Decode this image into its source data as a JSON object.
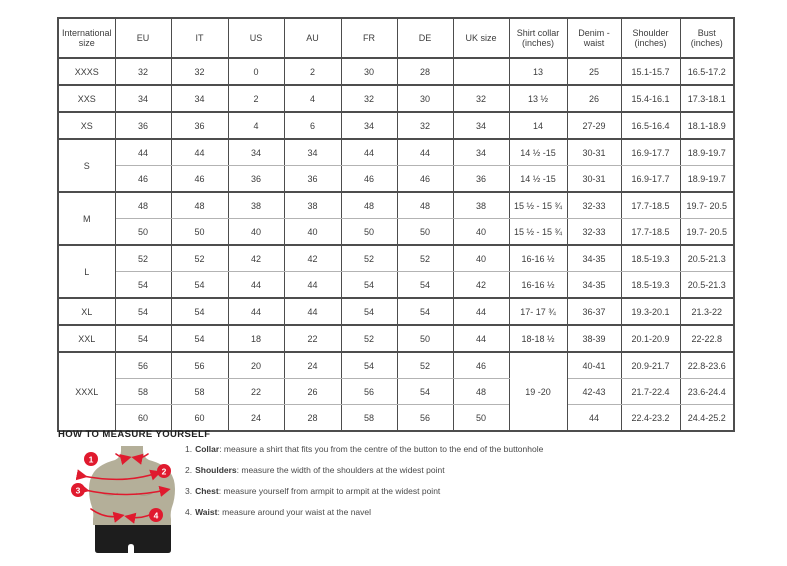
{
  "size_chart": {
    "headers": [
      "International size",
      "EU",
      "IT",
      "US",
      "AU",
      "FR",
      "DE",
      "UK size",
      "Shirt collar (inches)",
      "Denim - waist",
      "Shoulder (inches)",
      "Bust (inches)"
    ],
    "rows": [
      {
        "group_start": true,
        "cells": [
          "XXXS",
          "32",
          "32",
          "0",
          "2",
          "30",
          "28",
          "",
          "13",
          "25",
          "15.1-15.7",
          "16.5-17.2"
        ]
      },
      {
        "group_start": true,
        "cells": [
          "XXS",
          "34",
          "34",
          "2",
          "4",
          "32",
          "30",
          "32",
          "13 ½",
          "26",
          "15.4-16.1",
          "17.3-18.1"
        ]
      },
      {
        "group_start": true,
        "cells": [
          "XS",
          "36",
          "36",
          "4",
          "6",
          "34",
          "32",
          "34",
          "14",
          "27-29",
          "16.5-16.4",
          "18.1-18.9"
        ]
      },
      {
        "group_start": true,
        "cells": [
          {
            "t": "S",
            "rs": 2
          },
          "44",
          "44",
          "34",
          "34",
          "44",
          "44",
          "34",
          "14 ½ -15",
          "30-31",
          "16.9-17.7",
          "18.9-19.7"
        ]
      },
      {
        "group_start": false,
        "cells": [
          null,
          "46",
          "46",
          "36",
          "36",
          "46",
          "46",
          "36",
          "14 ½ -15",
          "30-31",
          "16.9-17.7",
          "18.9-19.7"
        ]
      },
      {
        "group_start": true,
        "cells": [
          {
            "t": "M",
            "rs": 2
          },
          "48",
          "48",
          "38",
          "38",
          "48",
          "48",
          "38",
          "15 ½ - 15 ¾",
          "32-33",
          "17.7-18.5",
          "19.7- 20.5"
        ]
      },
      {
        "group_start": false,
        "cells": [
          null,
          "50",
          "50",
          "40",
          "40",
          "50",
          "50",
          "40",
          "15 ½ - 15 ¾",
          "32-33",
          "17.7-18.5",
          "19.7- 20.5"
        ]
      },
      {
        "group_start": true,
        "cells": [
          {
            "t": "L",
            "rs": 2
          },
          "52",
          "52",
          "42",
          "42",
          "52",
          "52",
          "40",
          "16-16 ½",
          "34-35",
          "18.5-19.3",
          "20.5-21.3"
        ]
      },
      {
        "group_start": false,
        "cells": [
          null,
          "54",
          "54",
          "44",
          "44",
          "54",
          "54",
          "42",
          "16-16 ½",
          "34-35",
          "18.5-19.3",
          "20.5-21.3"
        ]
      },
      {
        "group_start": true,
        "cells": [
          "XL",
          "54",
          "54",
          "44",
          "44",
          "54",
          "54",
          "44",
          "17- 17 ¾",
          "36-37",
          "19.3-20.1",
          "21.3-22"
        ]
      },
      {
        "group_start": true,
        "cells": [
          "XXL",
          "54",
          "54",
          "18",
          "22",
          "52",
          "50",
          "44",
          "18-18 ½",
          "38-39",
          "20.1-20.9",
          "22-22.8"
        ]
      },
      {
        "group_start": true,
        "cells": [
          {
            "t": "XXXL",
            "rs": 3
          },
          "56",
          "56",
          "20",
          "24",
          "54",
          "52",
          "46",
          {
            "t": "19 -20",
            "rs": 3
          },
          "40-41",
          "20.9-21.7",
          "22.8-23.6"
        ]
      },
      {
        "group_start": false,
        "cells": [
          null,
          "58",
          "58",
          "22",
          "26",
          "56",
          "54",
          "48",
          null,
          "42-43",
          "21.7-22.4",
          "23.6-24.4"
        ]
      },
      {
        "group_start": false,
        "cells": [
          null,
          "60",
          "60",
          "24",
          "28",
          "58",
          "56",
          "50",
          null,
          "44",
          "22.4-23.2",
          "24.4-25.2"
        ]
      }
    ]
  },
  "measure_guide": {
    "heading": "HOW TO MEASURE YOURSELF",
    "items": [
      {
        "num": "1.",
        "label": "Collar",
        "text": ": measure a shirt that fits you from the centre of the button to the end of the buttonhole"
      },
      {
        "num": "2.",
        "label": "Shoulders",
        "text": ": measure the width of the shoulders at the widest point"
      },
      {
        "num": "3.",
        "label": "Chest",
        "text": ": measure yourself from armpit to armpit at the widest point"
      },
      {
        "num": "4.",
        "label": "Waist",
        "text": ": measure around your waist at the navel"
      }
    ],
    "figure": {
      "badges": [
        "1",
        "2",
        "3",
        "4"
      ],
      "colors": {
        "accent": "#e01a2e",
        "torso": "#b4af99",
        "shorts": "#1d1d1d",
        "contour": "#a09b85"
      }
    }
  }
}
